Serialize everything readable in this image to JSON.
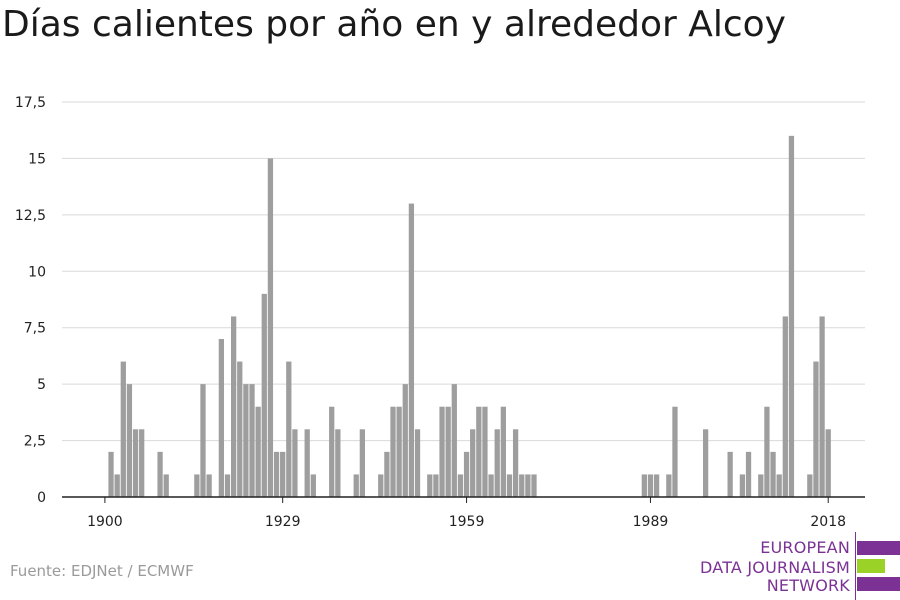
{
  "title": "Días calientes por año en y alrededor Alcoy",
  "source": "Fuente: EDJNet / ECMWF",
  "logo": {
    "lines": [
      "EUROPEAN",
      "DATA JOURNALISM",
      "NETWORK"
    ],
    "colors": {
      "purple": "#7b3294",
      "green": "#9bd227"
    }
  },
  "chart_data": {
    "type": "bar",
    "title": "Días calientes por año en y alrededor Alcoy",
    "xlabel": "",
    "ylabel": "",
    "bar_color": "#9e9e9e",
    "grid": true,
    "xlim": [
      1893,
      2024
    ],
    "ylim": [
      0,
      17.5
    ],
    "x_ticks": [
      1900,
      1929,
      1959,
      1989,
      2018
    ],
    "x_tick_labels": [
      "1900",
      "1929",
      "1959",
      "1989",
      "2018"
    ],
    "y_ticks": [
      0,
      2.5,
      5,
      7.5,
      10,
      12.5,
      15,
      17.5
    ],
    "y_tick_labels": [
      "0",
      "2,5",
      "5",
      "7,5",
      "10",
      "12,5",
      "15",
      "17,5"
    ],
    "x": [
      1901,
      1902,
      1903,
      1904,
      1905,
      1906,
      1909,
      1910,
      1915,
      1916,
      1917,
      1919,
      1920,
      1921,
      1922,
      1923,
      1924,
      1925,
      1926,
      1927,
      1928,
      1929,
      1930,
      1931,
      1933,
      1934,
      1937,
      1938,
      1941,
      1942,
      1945,
      1946,
      1947,
      1948,
      1949,
      1950,
      1951,
      1953,
      1954,
      1955,
      1956,
      1957,
      1958,
      1959,
      1960,
      1961,
      1962,
      1963,
      1964,
      1965,
      1966,
      1967,
      1968,
      1969,
      1970,
      1988,
      1989,
      1990,
      1992,
      1993,
      1998,
      2002,
      2004,
      2005,
      2007,
      2008,
      2009,
      2010,
      2011,
      2012,
      2015,
      2016,
      2017,
      2018
    ],
    "values": [
      2,
      1,
      6,
      5,
      3,
      3,
      2,
      1,
      1,
      5,
      1,
      7,
      1,
      8,
      6,
      5,
      5,
      4,
      9,
      15,
      2,
      2,
      6,
      3,
      3,
      1,
      4,
      3,
      1,
      3,
      1,
      2,
      4,
      4,
      5,
      13,
      3,
      1,
      1,
      4,
      4,
      5,
      1,
      2,
      3,
      4,
      4,
      1,
      3,
      4,
      1,
      3,
      1,
      1,
      1,
      1,
      1,
      1,
      1,
      4,
      3,
      2,
      1,
      2,
      1,
      4,
      2,
      1,
      8,
      16,
      1,
      6,
      8,
      3
    ]
  }
}
